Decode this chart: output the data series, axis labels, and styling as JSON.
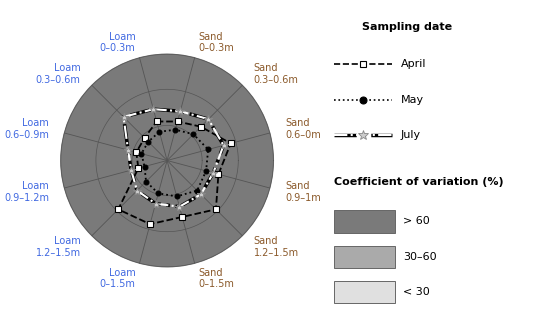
{
  "categories": [
    "Loam\n0–0.3m",
    "Sand\n0–0.3m",
    "Sand\n0.3–0.6m",
    "Sand\n0.6–0m",
    "Sand\n0.9–1m",
    "Sand\n1.2–1.5m",
    "Sand\n0–1.5m",
    "Loam\n0–1.5m",
    "Loam\n1.2–1.5m",
    "Loam\n0.9–1.2m",
    "Loam\n0.6–0.9m",
    "Loam\n0.3–0.6m"
  ],
  "category_colors": [
    "#4169e1",
    "#8b5a2b",
    "#8b5a2b",
    "#8b5a2b",
    "#8b5a2b",
    "#8b5a2b",
    "#8b5a2b",
    "#4169e1",
    "#4169e1",
    "#4169e1",
    "#4169e1",
    "#4169e1"
  ],
  "n_axes": 12,
  "zone_radii": [
    1.0,
    0.67,
    0.33
  ],
  "zone_colors": [
    "#7a7a7a",
    "#aaaaaa",
    "#e0e0e0"
  ],
  "april_values": [
    0.38,
    0.38,
    0.45,
    0.62,
    0.5,
    0.65,
    0.55,
    0.62,
    0.65,
    0.28,
    0.3,
    0.3
  ],
  "may_values": [
    0.28,
    0.3,
    0.35,
    0.4,
    0.38,
    0.4,
    0.35,
    0.32,
    0.28,
    0.22,
    0.25,
    0.25
  ],
  "july_values": [
    0.5,
    0.48,
    0.55,
    0.55,
    0.45,
    0.45,
    0.45,
    0.42,
    0.4,
    0.35,
    0.38,
    0.58
  ],
  "april_color": "#000000",
  "may_color": "#000000",
  "july_color": "#ffffff",
  "april_linestyle": "--",
  "may_linestyle": ":",
  "july_linestyle": "-.",
  "april_marker": "s",
  "may_marker": "o",
  "july_marker": "*",
  "april_markersize": 4,
  "may_markersize": 4,
  "july_markersize": 7,
  "april_linewidth": 1.2,
  "may_linewidth": 1.2,
  "july_linewidth": 1.5,
  "april_label": "April",
  "may_label": "May",
  "july_label": "July",
  "legend1_title": "Sampling date",
  "legend2_title": "Coefficient of variation (%)",
  "cv_labels": [
    "> 60",
    "30–60",
    "< 30"
  ],
  "cv_colors": [
    "#7a7a7a",
    "#aaaaaa",
    "#e0e0e0"
  ],
  "background_color": "#ffffff",
  "label_fontsize": 7.0,
  "legend_fontsize": 8.0
}
